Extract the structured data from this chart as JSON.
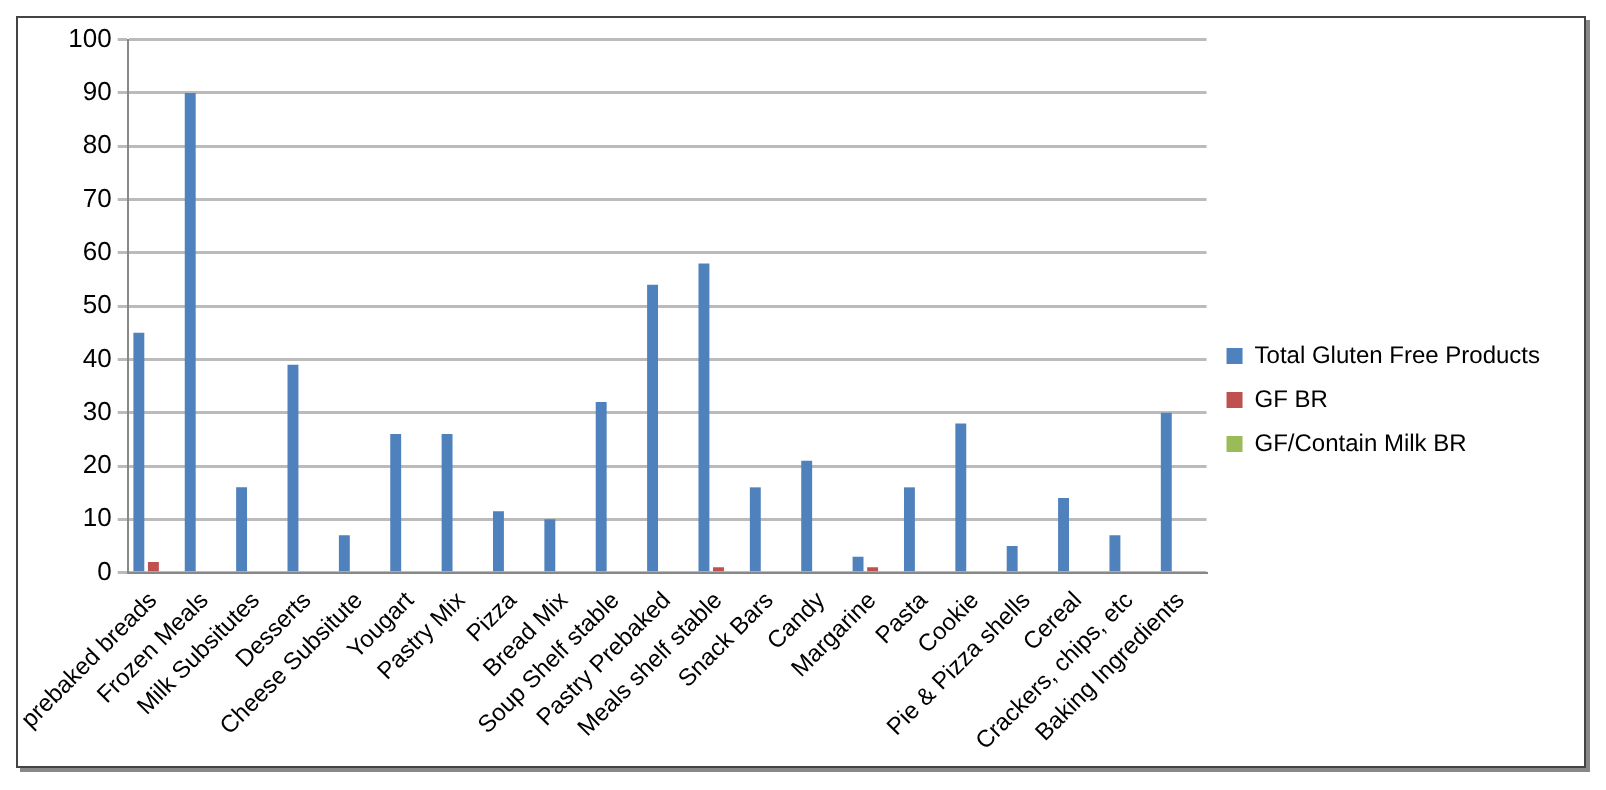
{
  "chart_data": {
    "type": "bar",
    "categories": [
      "prebaked breads",
      "Frozen Meals",
      "Milk Subsitutes",
      "Desserts",
      "Cheese Subsitute",
      "Yougart",
      "Pastry Mix",
      "Pizza",
      "Bread Mix",
      "Soup Shelf stable",
      "Pastry Prebaked",
      "Meals shelf stable",
      "Snack Bars",
      "Candy",
      "Margarine",
      "Pasta",
      "Cookie",
      "Pie & Pizza shells",
      "Cereal",
      "Crackers, chips, etc",
      "Baking Ingredients"
    ],
    "series": [
      {
        "name": "Total Gluten Free Products",
        "color": "#4f81bd",
        "values": [
          45,
          90,
          16,
          39,
          7,
          26,
          26,
          11.5,
          10,
          32,
          54,
          58,
          16,
          21,
          3,
          16,
          28,
          5,
          14,
          7,
          30
        ]
      },
      {
        "name": "GF BR",
        "color": "#c0504d",
        "values": [
          2,
          0,
          0,
          0,
          0,
          0,
          0,
          0,
          0,
          0,
          0,
          1,
          0,
          0,
          1,
          0,
          0,
          0,
          0,
          0,
          0
        ]
      },
      {
        "name": "GF/Contain Milk BR",
        "color": "#9bbb59",
        "values": [
          0,
          0,
          0,
          0,
          0,
          0,
          0,
          0,
          0,
          0,
          0,
          0,
          0,
          0,
          0,
          0,
          0,
          0,
          0,
          0,
          0
        ]
      }
    ],
    "ylim": [
      0,
      100
    ],
    "yticks": [
      0,
      10,
      20,
      30,
      40,
      50,
      60,
      70,
      80,
      90,
      100
    ],
    "grid": "y",
    "legend": "right"
  }
}
